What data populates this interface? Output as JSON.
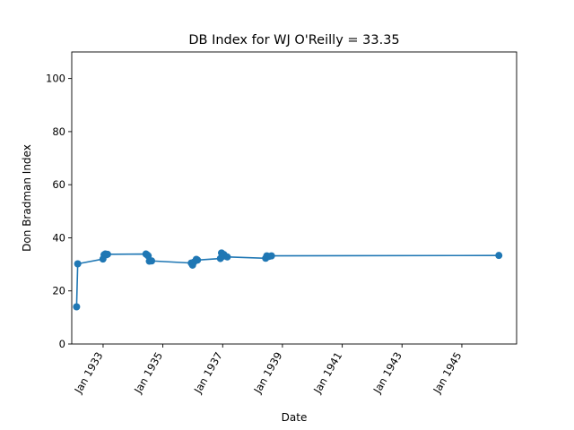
{
  "chart_data": {
    "type": "line",
    "title": "DB Index for WJ O'Reilly = 33.35",
    "xlabel": "Date",
    "ylabel": "Don Bradman Index",
    "x_axis_type": "date",
    "xlim": [
      "1931-12-15",
      "1946-11-01"
    ],
    "ylim": [
      0,
      110
    ],
    "grid": false,
    "legend": "none",
    "markers": true,
    "colors": {
      "series": "#1f77b4"
    },
    "x_ticks": [
      {
        "date": "1933-01-01",
        "label": "Jan 1933"
      },
      {
        "date": "1935-01-01",
        "label": "Jan 1935"
      },
      {
        "date": "1937-01-01",
        "label": "Jan 1937"
      },
      {
        "date": "1939-01-01",
        "label": "Jan 1939"
      },
      {
        "date": "1941-01-01",
        "label": "Jan 1941"
      },
      {
        "date": "1943-01-01",
        "label": "Jan 1943"
      },
      {
        "date": "1945-01-01",
        "label": "Jan 1945"
      }
    ],
    "y_ticks": [
      0,
      20,
      40,
      60,
      80,
      100
    ],
    "series": [
      {
        "x": [
          "1932-02-12",
          "1932-02-26",
          "1932-12-30",
          "1933-01-13",
          "1933-01-28",
          "1933-02-10",
          "1933-02-24",
          "1934-06-08",
          "1934-06-22",
          "1934-07-06",
          "1934-07-20",
          "1934-08-17",
          "1935-12-14",
          "1935-12-30",
          "1936-01-14",
          "1936-02-14",
          "1936-02-28",
          "1936-12-04",
          "1936-12-18",
          "1937-01-01",
          "1937-01-15",
          "1937-02-26",
          "1938-06-10",
          "1938-06-24",
          "1938-07-22",
          "1938-08-20",
          "1946-03-29"
        ],
        "y": [
          14.0,
          30.2,
          32.0,
          33.6,
          33.9,
          33.6,
          33.8,
          33.9,
          33.6,
          33.2,
          31.2,
          31.3,
          30.5,
          29.7,
          30.8,
          31.9,
          31.6,
          32.2,
          34.3,
          33.0,
          33.7,
          32.8,
          32.3,
          33.2,
          33.0,
          33.2,
          33.35
        ]
      }
    ]
  }
}
